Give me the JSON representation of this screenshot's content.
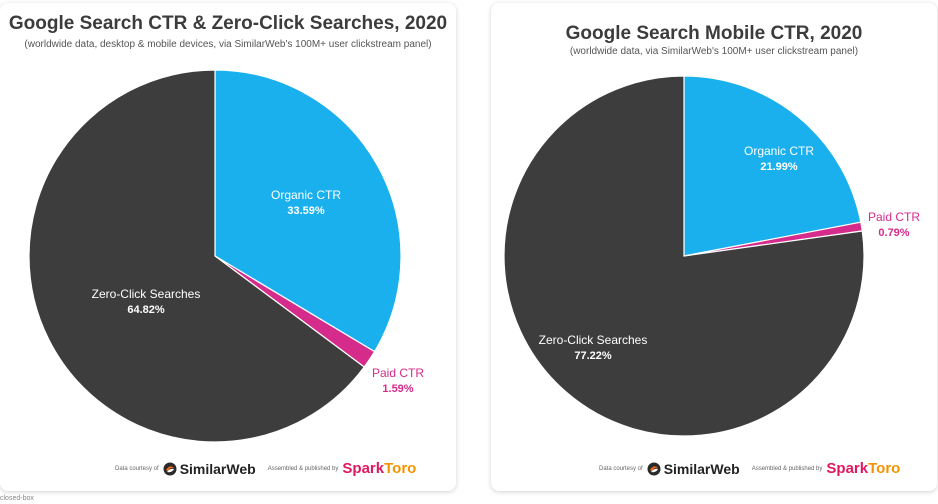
{
  "colors": {
    "organic": "#1ab0ee",
    "paid": "#d52b8a",
    "zero": "#3d3d3d",
    "paid_label": "#d52b8a"
  },
  "chart_data": [
    {
      "type": "pie",
      "title": "Google Search CTR & Zero-Click Searches, 2020",
      "subtitle": "(worldwide data, desktop & mobile devices, via SimilarWeb's 100M+ user clickstream panel)",
      "slices": [
        {
          "label": "Organic CTR",
          "value": 33.59,
          "value_label": "33.59%"
        },
        {
          "label": "Paid CTR",
          "value": 1.59,
          "value_label": "1.59%"
        },
        {
          "label": "Zero-Click Searches",
          "value": 64.82,
          "value_label": "64.82%"
        }
      ],
      "start_angle_deg": 0,
      "direction": "clockwise"
    },
    {
      "type": "pie",
      "title": "Google Search Mobile CTR, 2020",
      "subtitle": "(worldwide data, via SimilarWeb's 100M+ user clickstream panel)",
      "slices": [
        {
          "label": "Organic CTR",
          "value": 21.99,
          "value_label": "21.99%"
        },
        {
          "label": "Paid CTR",
          "value": 0.79,
          "value_label": "0.79%"
        },
        {
          "label": "Zero-Click Searches",
          "value": 77.22,
          "value_label": "77.22%"
        }
      ],
      "start_angle_deg": 0,
      "direction": "clockwise"
    }
  ],
  "footer": {
    "data_courtesy": "Data courtesy of",
    "similarweb": "SimilarWeb",
    "assembled": "Assembled & published by",
    "sparktoro_a": "Spark",
    "sparktoro_b": "Toro"
  },
  "caption": "closed-box"
}
